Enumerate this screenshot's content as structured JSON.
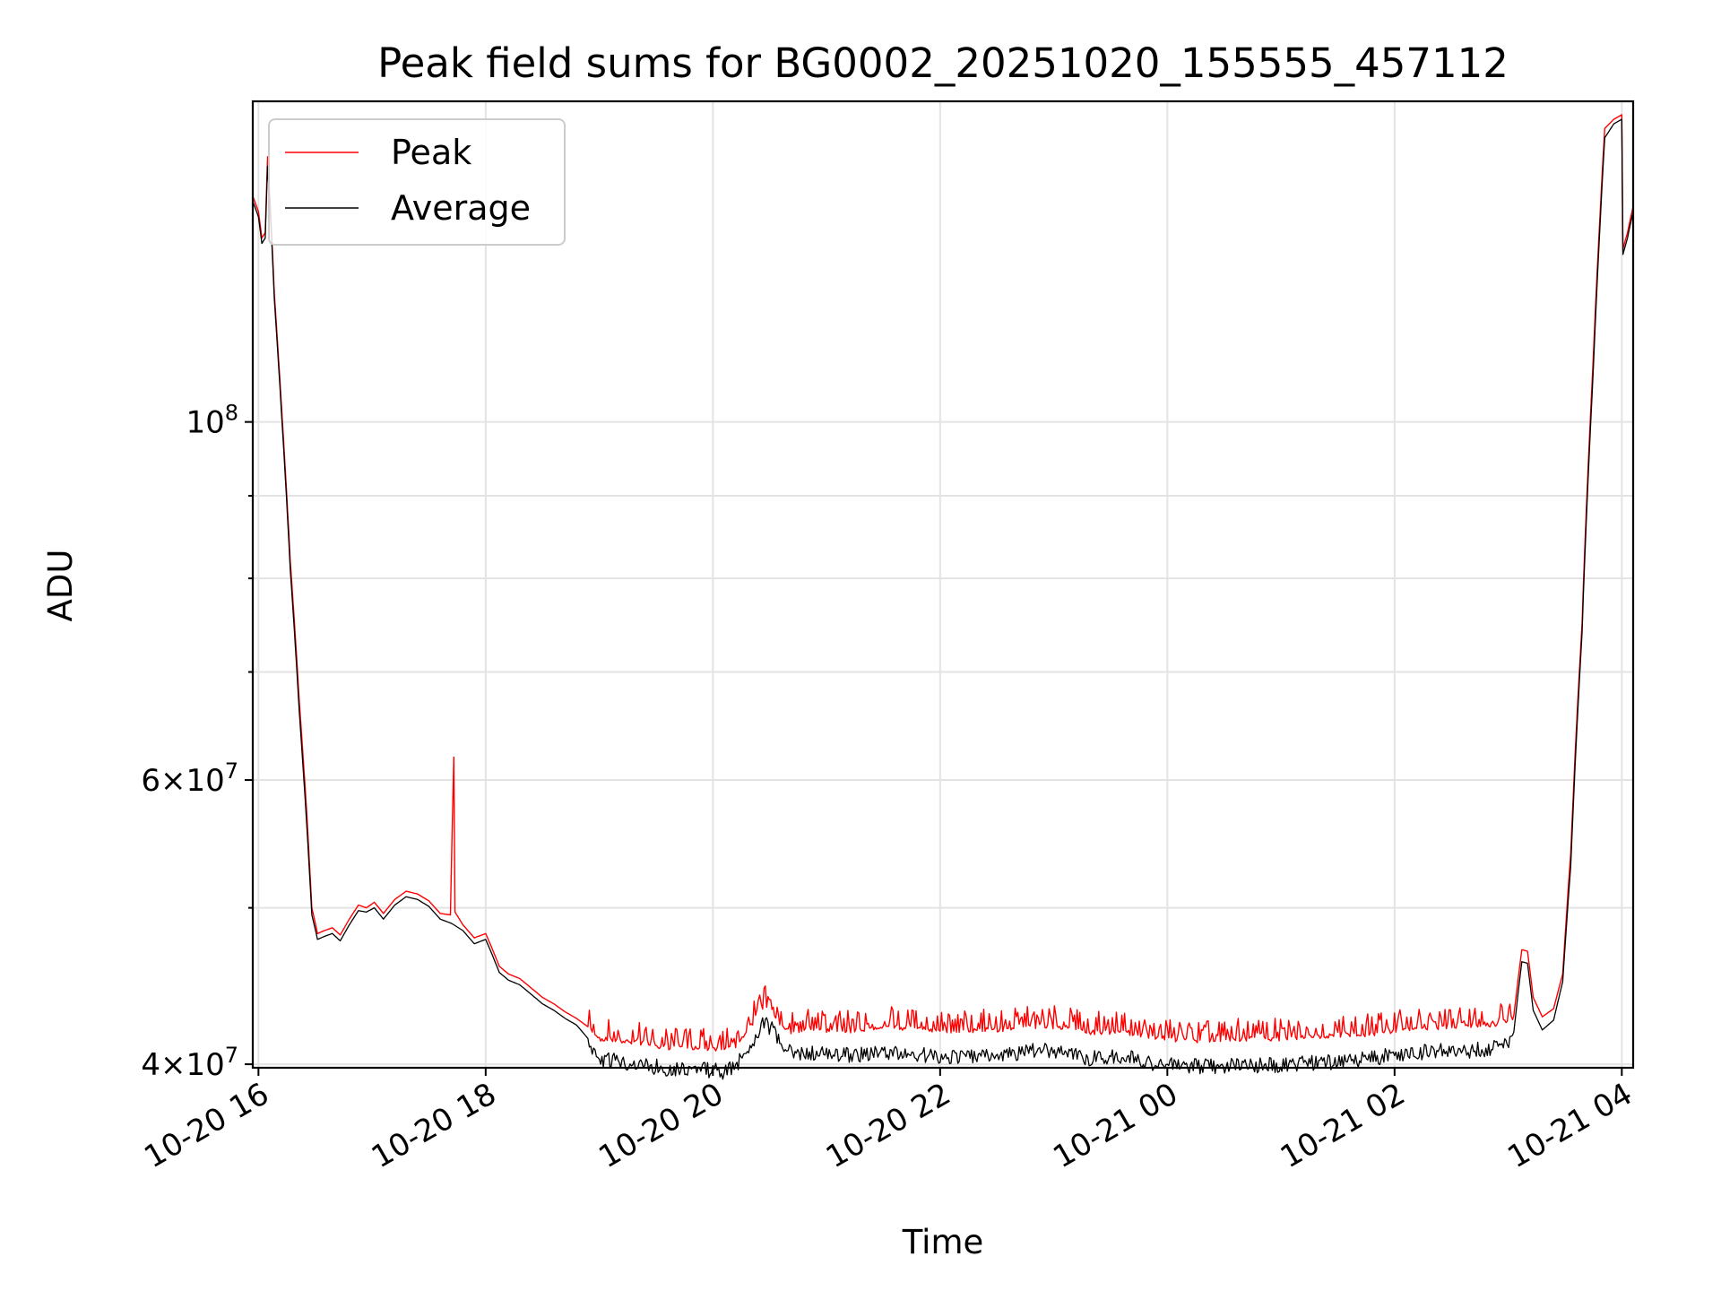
{
  "chart_data": {
    "type": "line",
    "title": "Peak field sums for BG0002_20251020_155555_457112",
    "xlabel": "Time",
    "ylabel": "ADU",
    "xlim": [
      15.95,
      28.1
    ],
    "ylim": [
      39800000,
      158000000
    ],
    "yscale": "log",
    "grid": true,
    "legend_position": "top-left",
    "x_ticks": [
      {
        "value": 16,
        "label": "10-20 16"
      },
      {
        "value": 18,
        "label": "10-20 18"
      },
      {
        "value": 20,
        "label": "10-20 20"
      },
      {
        "value": 22,
        "label": "10-20 22"
      },
      {
        "value": 24,
        "label": "10-21 00"
      },
      {
        "value": 26,
        "label": "10-21 02"
      },
      {
        "value": 28,
        "label": "10-21 04"
      }
    ],
    "y_ticks": [
      {
        "value": 40000000,
        "base": "4×10",
        "exp": "7"
      },
      {
        "value": 60000000,
        "base": "6×10",
        "exp": "7"
      },
      {
        "value": 100000000,
        "base": "10",
        "exp": "8"
      }
    ],
    "y_minor_ticks": [
      50000000,
      70000000,
      80000000,
      90000000
    ],
    "series": [
      {
        "name": "Peak",
        "color": "#ff0000",
        "points": [
          [
            15.95,
            138000000
          ],
          [
            16.0,
            135000000
          ],
          [
            16.03,
            130000000
          ],
          [
            16.06,
            131000000
          ],
          [
            16.08,
            146000000
          ],
          [
            16.1,
            138000000
          ],
          [
            16.14,
            120000000
          ],
          [
            16.2,
            103000000
          ],
          [
            16.28,
            82000000
          ],
          [
            16.36,
            67000000
          ],
          [
            16.42,
            58000000
          ],
          [
            16.47,
            50000000
          ],
          [
            16.52,
            48200000
          ],
          [
            16.58,
            48400000
          ],
          [
            16.65,
            48600000
          ],
          [
            16.72,
            48100000
          ],
          [
            16.8,
            49200000
          ],
          [
            16.88,
            50200000
          ],
          [
            16.95,
            50000000
          ],
          [
            17.02,
            50400000
          ],
          [
            17.1,
            49600000
          ],
          [
            17.2,
            50600000
          ],
          [
            17.3,
            51200000
          ],
          [
            17.4,
            51000000
          ],
          [
            17.5,
            50500000
          ],
          [
            17.6,
            49600000
          ],
          [
            17.69,
            49500000
          ],
          [
            17.72,
            62000000
          ],
          [
            17.73,
            49700000
          ],
          [
            17.8,
            48800000
          ],
          [
            17.9,
            47900000
          ],
          [
            18.0,
            48200000
          ],
          [
            18.05,
            47300000
          ],
          [
            18.12,
            46000000
          ],
          [
            18.2,
            45500000
          ],
          [
            18.3,
            45200000
          ],
          [
            18.4,
            44600000
          ],
          [
            18.5,
            44000000
          ],
          [
            18.6,
            43600000
          ],
          [
            18.7,
            43100000
          ],
          [
            18.8,
            42700000
          ],
          [
            18.9,
            42200000
          ],
          [
            19.0,
            41600000
          ],
          [
            19.2,
            41500000
          ],
          [
            19.4,
            41300000
          ],
          [
            19.6,
            41100000
          ],
          [
            19.8,
            41100000
          ],
          [
            20.0,
            41000000
          ],
          [
            20.1,
            41000000
          ],
          [
            20.2,
            41200000
          ],
          [
            20.35,
            42500000
          ],
          [
            20.45,
            43700000
          ],
          [
            20.52,
            43300000
          ],
          [
            20.6,
            42400000
          ],
          [
            20.7,
            42000000
          ],
          [
            20.85,
            42200000
          ],
          [
            21.0,
            42100000
          ],
          [
            21.2,
            42100000
          ],
          [
            21.5,
            42300000
          ],
          [
            21.8,
            42200000
          ],
          [
            22.0,
            42100000
          ],
          [
            22.3,
            42100000
          ],
          [
            22.6,
            42200000
          ],
          [
            22.9,
            42400000
          ],
          [
            23.1,
            42300000
          ],
          [
            23.3,
            42000000
          ],
          [
            23.6,
            42000000
          ],
          [
            23.8,
            41800000
          ],
          [
            24.0,
            41600000
          ],
          [
            24.3,
            41500000
          ],
          [
            24.6,
            41600000
          ],
          [
            24.9,
            41600000
          ],
          [
            25.2,
            41700000
          ],
          [
            25.5,
            41800000
          ],
          [
            25.8,
            41900000
          ],
          [
            26.0,
            42100000
          ],
          [
            26.3,
            42300000
          ],
          [
            26.6,
            42300000
          ],
          [
            26.9,
            42500000
          ],
          [
            27.05,
            42900000
          ],
          [
            27.12,
            47100000
          ],
          [
            27.17,
            47000000
          ],
          [
            27.22,
            44000000
          ],
          [
            27.3,
            42800000
          ],
          [
            27.4,
            43300000
          ],
          [
            27.48,
            45500000
          ],
          [
            27.55,
            54000000
          ],
          [
            27.65,
            75000000
          ],
          [
            27.75,
            110000000
          ],
          [
            27.85,
            152000000
          ],
          [
            27.93,
            154000000
          ],
          [
            28.0,
            155000000
          ],
          [
            28.01,
            128000000
          ],
          [
            28.05,
            131000000
          ],
          [
            28.1,
            136000000
          ]
        ]
      },
      {
        "name": "Average",
        "color": "#000000",
        "points": [
          [
            15.95,
            137000000
          ],
          [
            16.0,
            134000000
          ],
          [
            16.03,
            129000000
          ],
          [
            16.06,
            130000000
          ],
          [
            16.08,
            144000000
          ],
          [
            16.1,
            137000000
          ],
          [
            16.14,
            119000000
          ],
          [
            16.2,
            102000000
          ],
          [
            16.28,
            81000000
          ],
          [
            16.36,
            66000000
          ],
          [
            16.42,
            57000000
          ],
          [
            16.47,
            49500000
          ],
          [
            16.52,
            47800000
          ],
          [
            16.58,
            48000000
          ],
          [
            16.65,
            48200000
          ],
          [
            16.72,
            47700000
          ],
          [
            16.8,
            48800000
          ],
          [
            16.88,
            49800000
          ],
          [
            16.95,
            49700000
          ],
          [
            17.02,
            50000000
          ],
          [
            17.1,
            49200000
          ],
          [
            17.2,
            50200000
          ],
          [
            17.3,
            50800000
          ],
          [
            17.4,
            50600000
          ],
          [
            17.5,
            50100000
          ],
          [
            17.6,
            49200000
          ],
          [
            17.7,
            48900000
          ],
          [
            17.8,
            48400000
          ],
          [
            17.9,
            47500000
          ],
          [
            18.0,
            47800000
          ],
          [
            18.05,
            46900000
          ],
          [
            18.12,
            45600000
          ],
          [
            18.2,
            45100000
          ],
          [
            18.3,
            44800000
          ],
          [
            18.4,
            44200000
          ],
          [
            18.5,
            43600000
          ],
          [
            18.6,
            43200000
          ],
          [
            18.7,
            42700000
          ],
          [
            18.8,
            42300000
          ],
          [
            18.9,
            41500000
          ],
          [
            19.0,
            40700000
          ],
          [
            19.2,
            40600000
          ],
          [
            19.4,
            40400000
          ],
          [
            19.6,
            40200000
          ],
          [
            19.8,
            40200000
          ],
          [
            20.0,
            40100000
          ],
          [
            20.1,
            40000000
          ],
          [
            20.2,
            40300000
          ],
          [
            20.35,
            41800000
          ],
          [
            20.45,
            43000000
          ],
          [
            20.52,
            42500000
          ],
          [
            20.6,
            41600000
          ],
          [
            20.7,
            41000000
          ],
          [
            20.85,
            41100000
          ],
          [
            21.0,
            41000000
          ],
          [
            21.2,
            41000000
          ],
          [
            21.5,
            41100000
          ],
          [
            21.8,
            41000000
          ],
          [
            22.0,
            40900000
          ],
          [
            22.3,
            40900000
          ],
          [
            22.6,
            41000000
          ],
          [
            22.9,
            41300000
          ],
          [
            23.1,
            41200000
          ],
          [
            23.3,
            40800000
          ],
          [
            23.6,
            40900000
          ],
          [
            23.8,
            40600000
          ],
          [
            24.0,
            40400000
          ],
          [
            24.3,
            40300000
          ],
          [
            24.6,
            40400000
          ],
          [
            24.9,
            40400000
          ],
          [
            25.2,
            40500000
          ],
          [
            25.5,
            40600000
          ],
          [
            25.8,
            40800000
          ],
          [
            26.0,
            41000000
          ],
          [
            26.3,
            41200000
          ],
          [
            26.6,
            41200000
          ],
          [
            26.9,
            41400000
          ],
          [
            27.05,
            41900000
          ],
          [
            27.12,
            46300000
          ],
          [
            27.17,
            46200000
          ],
          [
            27.22,
            43200000
          ],
          [
            27.3,
            42000000
          ],
          [
            27.4,
            42600000
          ],
          [
            27.48,
            45000000
          ],
          [
            27.55,
            53000000
          ],
          [
            27.65,
            74000000
          ],
          [
            27.75,
            108000000
          ],
          [
            27.85,
            150000000
          ],
          [
            27.93,
            153000000
          ],
          [
            28.0,
            154000000
          ],
          [
            28.01,
            127000000
          ],
          [
            28.05,
            130000000
          ],
          [
            28.1,
            135000000
          ]
        ]
      }
    ]
  }
}
